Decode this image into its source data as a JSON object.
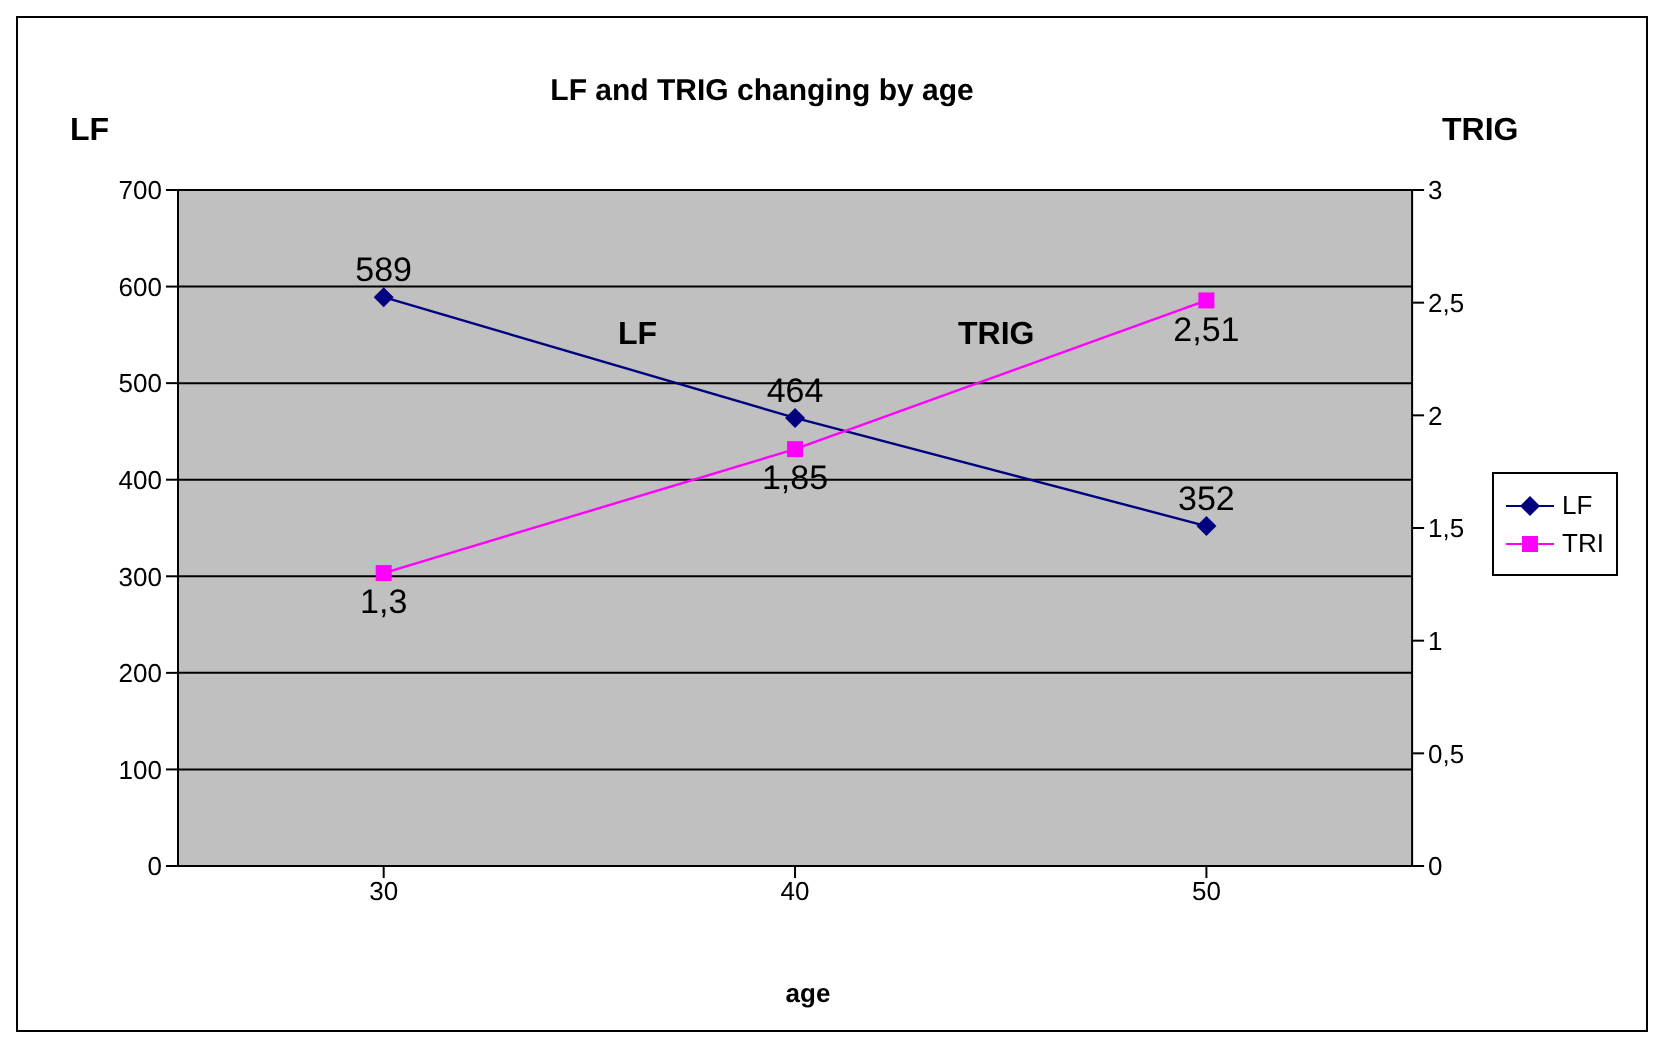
{
  "chart_data": {
    "type": "line",
    "title": "LF and TRIG changing by age",
    "xlabel": "age",
    "ylabel": "LF",
    "y2label": "TRIG",
    "categories": [
      "30",
      "40",
      "50"
    ],
    "series": [
      {
        "name": "LF",
        "color": "#000080",
        "values": [
          589,
          464,
          352
        ],
        "value_labels": [
          "589",
          "464",
          "352"
        ],
        "marker": "diamond"
      },
      {
        "name": "TRI",
        "color": "#ff00ff",
        "values": [
          1.3,
          1.85,
          2.51
        ],
        "value_labels": [
          "1,3",
          "1,85",
          "2,51"
        ],
        "marker": "square",
        "axis": "y2"
      }
    ],
    "ylim": [
      0,
      700
    ],
    "yticks": [
      0,
      100,
      200,
      300,
      400,
      500,
      600,
      700
    ],
    "y2lim": [
      0,
      3
    ],
    "y2ticks": [
      0,
      {
        "value": 0.5,
        "label": "0,5"
      },
      1,
      {
        "value": 1.5,
        "label": "1,5"
      },
      2,
      {
        "value": 2.5,
        "label": "2,5"
      },
      3
    ],
    "annotations": [
      "LF",
      "TRIG"
    ],
    "grid": "y",
    "legend": "right",
    "line_style": "solid"
  }
}
